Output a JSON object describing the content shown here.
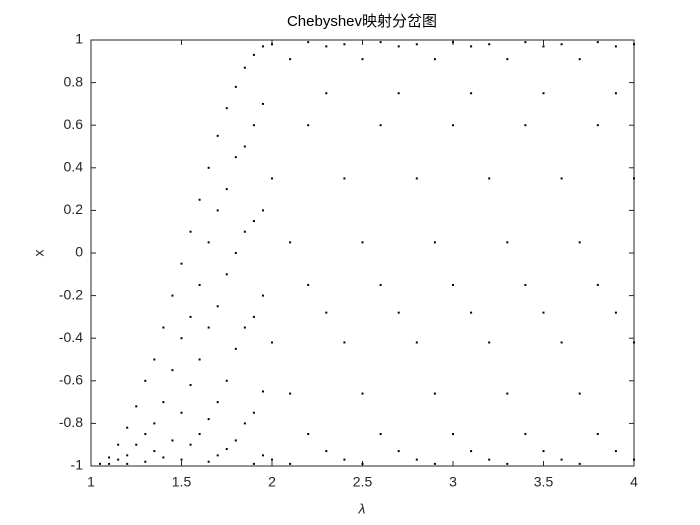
{
  "chart_data": {
    "type": "scatter",
    "title": "Chebyshev映射分岔图",
    "xlabel": "λ",
    "ylabel": "x",
    "xlim": [
      1,
      4
    ],
    "ylim": [
      -1,
      1
    ],
    "xticks": [
      1,
      1.5,
      2,
      2.5,
      3,
      3.5,
      4
    ],
    "yticks": [
      -1,
      -0.8,
      -0.6,
      -0.4,
      -0.2,
      0,
      0.2,
      0.4,
      0.6,
      0.8,
      1
    ],
    "color": "#000000",
    "x": [
      1.05,
      1.1,
      1.1,
      1.15,
      1.15,
      1.2,
      1.2,
      1.2,
      1.25,
      1.25,
      1.3,
      1.3,
      1.3,
      1.35,
      1.35,
      1.35,
      1.4,
      1.4,
      1.4,
      1.45,
      1.45,
      1.45,
      1.5,
      1.5,
      1.5,
      1.5,
      1.55,
      1.55,
      1.55,
      1.55,
      1.6,
      1.6,
      1.6,
      1.6,
      1.65,
      1.65,
      1.65,
      1.65,
      1.65,
      1.7,
      1.7,
      1.7,
      1.7,
      1.7,
      1.75,
      1.75,
      1.75,
      1.75,
      1.75,
      1.8,
      1.8,
      1.8,
      1.8,
      1.8,
      1.85,
      1.85,
      1.85,
      1.85,
      1.85,
      1.9,
      1.9,
      1.9,
      1.9,
      1.9,
      1.9,
      1.95,
      1.95,
      1.95,
      1.95,
      1.95,
      1.95,
      2,
      2,
      2,
      2,
      2.1,
      2.1,
      2.1,
      2.1,
      2.2,
      2.2,
      2.2,
      2.2,
      2.3,
      2.3,
      2.3,
      2.3,
      2.4,
      2.4,
      2.4,
      2.4,
      2.5,
      2.5,
      2.5,
      2.5,
      2.6,
      2.6,
      2.6,
      2.6,
      2.7,
      2.7,
      2.7,
      2.7,
      2.8,
      2.8,
      2.8,
      2.8,
      2.9,
      2.9,
      2.9,
      2.9,
      3,
      3,
      3,
      3,
      3.1,
      3.1,
      3.1,
      3.1,
      3.2,
      3.2,
      3.2,
      3.2,
      3.3,
      3.3,
      3.3,
      3.3,
      3.4,
      3.4,
      3.4,
      3.4,
      3.5,
      3.5,
      3.5,
      3.5,
      3.6,
      3.6,
      3.6,
      3.6,
      3.7,
      3.7,
      3.7,
      3.7,
      3.8,
      3.8,
      3.8,
      3.8,
      3.9,
      3.9,
      3.9,
      3.9,
      4,
      4,
      4,
      4
    ],
    "y": [
      -0.99,
      -0.96,
      -0.99,
      -0.9,
      -0.97,
      -0.82,
      -0.95,
      -0.99,
      -0.72,
      -0.9,
      -0.6,
      -0.85,
      -0.98,
      -0.5,
      -0.8,
      -0.93,
      -0.35,
      -0.7,
      -0.96,
      -0.2,
      -0.55,
      -0.88,
      -0.05,
      -0.4,
      -0.75,
      -0.97,
      0.1,
      -0.3,
      -0.62,
      -0.9,
      0.25,
      -0.15,
      -0.5,
      -0.85,
      0.4,
      0.05,
      -0.35,
      -0.78,
      -0.98,
      0.55,
      0.2,
      -0.25,
      -0.7,
      -0.95,
      0.68,
      0.3,
      -0.1,
      -0.6,
      -0.92,
      0.78,
      0.45,
      0,
      -0.45,
      -0.88,
      0.87,
      0.5,
      0.1,
      -0.35,
      -0.8,
      0.93,
      0.6,
      0.15,
      -0.3,
      -0.75,
      -0.99,
      0.97,
      0.7,
      0.2,
      -0.2,
      -0.65,
      -0.95,
      0.98,
      0.35,
      -0.42,
      -0.97,
      0.91,
      0.05,
      -0.66,
      -0.99,
      0.99,
      0.6,
      -0.15,
      -0.85,
      0.75,
      -0.28,
      -0.93,
      0.97,
      0.98,
      0.35,
      -0.42,
      -0.97,
      0.91,
      0.05,
      -0.66,
      -0.99,
      0.99,
      0.6,
      -0.15,
      -0.85,
      0.75,
      -0.28,
      -0.93,
      0.97,
      0.98,
      0.35,
      -0.42,
      -0.97,
      0.91,
      0.05,
      -0.66,
      -0.99,
      0.99,
      0.6,
      -0.15,
      -0.85,
      0.75,
      -0.28,
      -0.93,
      0.97,
      0.98,
      0.35,
      -0.42,
      -0.97,
      0.91,
      0.05,
      -0.66,
      -0.99,
      0.99,
      0.6,
      -0.15,
      -0.85,
      0.75,
      -0.28,
      -0.93,
      0.97,
      0.98,
      0.35,
      -0.42,
      -0.97,
      0.91,
      0.05,
      -0.66,
      -0.99,
      0.99,
      0.6,
      -0.15,
      -0.85,
      0.75,
      -0.28,
      -0.93,
      0.97,
      0.98,
      0.35,
      -0.42,
      -0.97
    ]
  }
}
